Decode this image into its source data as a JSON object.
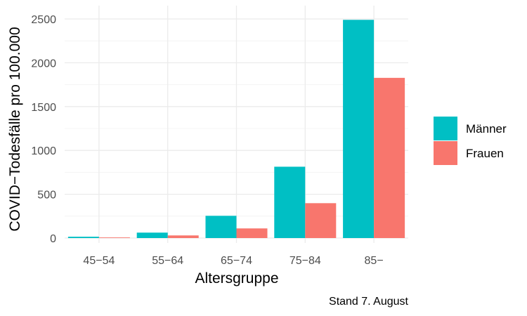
{
  "chart_data": {
    "type": "bar",
    "categories": [
      "45−54",
      "55−64",
      "65−74",
      "75−84",
      "85−"
    ],
    "series": [
      {
        "name": "Männer",
        "values": [
          15,
          62,
          254,
          814,
          2490
        ],
        "color": "#00BFC4"
      },
      {
        "name": "Frauen",
        "values": [
          7,
          30,
          110,
          398,
          1828
        ],
        "color": "#F8766D"
      }
    ],
    "xlabel": "Altersgruppe",
    "ylabel": "COVID−Todesfälle pro 100.000",
    "ylim": [
      0,
      2600
    ],
    "yticks": [
      0,
      500,
      1000,
      1500,
      2000,
      2500
    ],
    "ytick_labels": [
      "0",
      "500",
      "1000",
      "1500",
      "2000",
      "2500"
    ],
    "legend_position": "right",
    "grid": true,
    "caption": "Stand 7. August"
  }
}
